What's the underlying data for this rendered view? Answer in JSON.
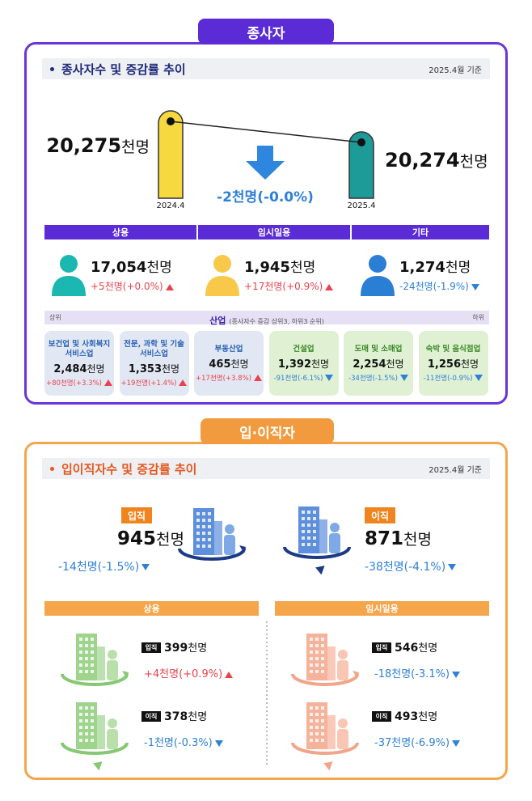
{
  "employees": {
    "tab": "종사자",
    "heading": "종사자수 및 증감률 추이",
    "date": "2025.4월 기준",
    "before": {
      "period": "2024.4",
      "value": "20,275",
      "unit": "천명"
    },
    "after": {
      "period": "2025.4",
      "value": "20,274",
      "unit": "천명"
    },
    "change": "-2천명(-0.0%)",
    "types": [
      {
        "label": "상용",
        "value": "17,054",
        "unit": "천명",
        "change": "+5천명(+0.0%)"
      },
      {
        "label": "임시일용",
        "value": "1,945",
        "unit": "천명",
        "change": "+17천명(+0.9%)"
      },
      {
        "label": "기타",
        "value": "1,274",
        "unit": "천명",
        "change": "-24천명(-1.9%)"
      }
    ],
    "industry": {
      "top_label": "상위",
      "title": "산업",
      "note": "(종사자수 증감 상위3, 하위3 순위)",
      "bottom_label": "하위",
      "items": [
        {
          "name": [
            "보건업 및 사회복지",
            "서비스업"
          ],
          "value": "2,484",
          "unit": "천명",
          "change": "+80천명(+3.3%)"
        },
        {
          "name": [
            "전문, 과학 및 기술",
            "서비스업"
          ],
          "value": "1,353",
          "unit": "천명",
          "change": "+19천명(+1.4%)"
        },
        {
          "name": [
            "부동산업"
          ],
          "value": "465",
          "unit": "천명",
          "change": "+17천명(+3.8%)"
        },
        {
          "name": [
            "건설업"
          ],
          "value": "1,392",
          "unit": "천명",
          "change": "-91천명(-6.1%)"
        },
        {
          "name": [
            "도매 및 소매업"
          ],
          "value": "2,254",
          "unit": "천명",
          "change": "-34천명(-1.5%)"
        },
        {
          "name": [
            "숙박 및 음식점업"
          ],
          "value": "1,256",
          "unit": "천명",
          "change": "-11천명(-0.9%)"
        }
      ]
    }
  },
  "turnover": {
    "tab": "입·이직자",
    "heading": "입이직자수 및 증감률 추이",
    "date": "2025.4월 기준",
    "hires": {
      "badge": "입직",
      "value": "945",
      "unit": "천명",
      "change": "-14천명(-1.5%)"
    },
    "separations": {
      "badge": "이직",
      "value": "871",
      "unit": "천명",
      "change": "-38천명(-4.1%)"
    },
    "groups": [
      {
        "label": "상용",
        "rows": [
          {
            "badge": "입직",
            "value": "399",
            "unit": "천명",
            "change": "+4천명(+0.9%)"
          },
          {
            "badge": "이직",
            "value": "378",
            "unit": "천명",
            "change": "-1천명(-0.3%)"
          }
        ]
      },
      {
        "label": "임시일용",
        "rows": [
          {
            "badge": "입직",
            "value": "546",
            "unit": "천명",
            "change": "-18천명(-3.1%)"
          },
          {
            "badge": "이직",
            "value": "493",
            "unit": "천명",
            "change": "-37천명(-6.9%)"
          }
        ]
      }
    ]
  }
}
